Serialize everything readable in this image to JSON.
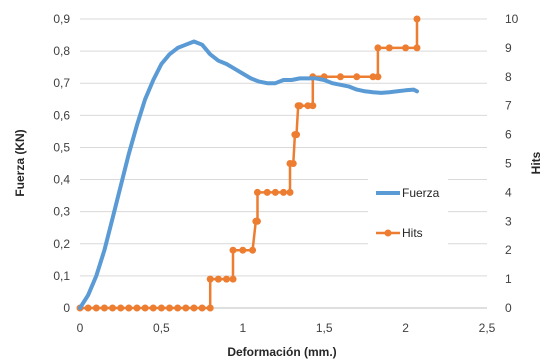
{
  "chart_data": {
    "type": "line",
    "xlabel": "Deformación (mm.)",
    "ylabel": "Fuerza (KN)",
    "y2label": "Hits",
    "xlim": [
      0,
      2.5
    ],
    "ylim": [
      0,
      0.9
    ],
    "y2lim": [
      0,
      10
    ],
    "x_ticks": [
      "0",
      "0,5",
      "1",
      "1,5",
      "2",
      "2,5"
    ],
    "y_ticks": [
      "0",
      "0,1",
      "0,2",
      "0,3",
      "0,4",
      "0,5",
      "0,6",
      "0,7",
      "0,8",
      "0,9"
    ],
    "y2_ticks": [
      "0",
      "1",
      "2",
      "3",
      "4",
      "5",
      "6",
      "7",
      "8",
      "9",
      "10"
    ],
    "grid": "horizontal",
    "legend_position": "right-center",
    "series": [
      {
        "name": "Fuerza",
        "axis": "left",
        "color": "#5b9bd5",
        "x": [
          0,
          0.05,
          0.1,
          0.15,
          0.2,
          0.25,
          0.3,
          0.35,
          0.4,
          0.45,
          0.5,
          0.55,
          0.6,
          0.65,
          0.7,
          0.75,
          0.8,
          0.85,
          0.9,
          0.95,
          1.0,
          1.05,
          1.1,
          1.15,
          1.2,
          1.25,
          1.3,
          1.35,
          1.4,
          1.45,
          1.5,
          1.55,
          1.6,
          1.65,
          1.7,
          1.75,
          1.8,
          1.85,
          1.9,
          1.95,
          2.0,
          2.05,
          2.07
        ],
        "y": [
          0,
          0.04,
          0.1,
          0.18,
          0.28,
          0.38,
          0.48,
          0.57,
          0.65,
          0.71,
          0.76,
          0.79,
          0.81,
          0.82,
          0.83,
          0.82,
          0.79,
          0.77,
          0.76,
          0.745,
          0.73,
          0.715,
          0.705,
          0.7,
          0.7,
          0.71,
          0.71,
          0.715,
          0.715,
          0.715,
          0.71,
          0.7,
          0.695,
          0.69,
          0.68,
          0.675,
          0.672,
          0.67,
          0.672,
          0.675,
          0.678,
          0.68,
          0.675
        ]
      },
      {
        "name": "Hits",
        "axis": "right",
        "color": "#ed7d31",
        "x": [
          0,
          0.05,
          0.1,
          0.15,
          0.2,
          0.25,
          0.3,
          0.35,
          0.4,
          0.45,
          0.5,
          0.55,
          0.6,
          0.65,
          0.7,
          0.75,
          0.8,
          0.8,
          0.85,
          0.9,
          0.94,
          0.94,
          1.0,
          1.06,
          1.08,
          1.09,
          1.09,
          1.15,
          1.2,
          1.25,
          1.29,
          1.29,
          1.31,
          1.32,
          1.33,
          1.34,
          1.35,
          1.4,
          1.43,
          1.43,
          1.5,
          1.6,
          1.7,
          1.8,
          1.83,
          1.83,
          1.9,
          2.0,
          2.07,
          2.07
        ],
        "y": [
          0,
          0,
          0,
          0,
          0,
          0,
          0,
          0,
          0,
          0,
          0,
          0,
          0,
          0,
          0,
          0,
          0,
          1,
          1,
          1,
          1,
          2,
          2,
          2,
          3,
          3,
          4,
          4,
          4,
          4,
          4,
          5,
          5,
          6,
          6,
          7,
          7,
          7,
          7,
          8,
          8,
          8,
          8,
          8,
          8,
          9,
          9,
          9,
          9,
          10
        ]
      }
    ]
  }
}
